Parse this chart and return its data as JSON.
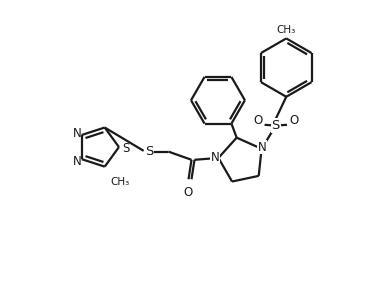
{
  "bg_color": "#ffffff",
  "line_color": "#1a1a1a",
  "line_width": 1.6,
  "fig_width": 3.82,
  "fig_height": 3.02,
  "dpi": 100,
  "xlim": [
    0,
    10
  ],
  "ylim": [
    0,
    8
  ]
}
